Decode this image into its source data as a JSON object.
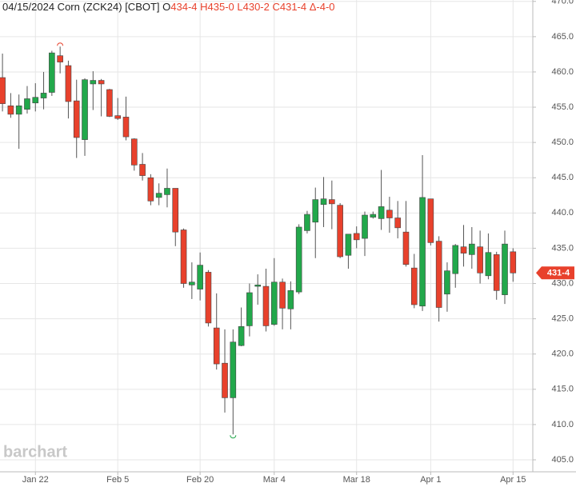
{
  "chart_data": {
    "type": "candlestick",
    "title": "04/15/2024 Corn (ZCK24) [CBOT] O",
    "quote": "434-4 H435-0 L430-2 C431-4 Δ-4-0",
    "watermark": "barchart",
    "last_price": {
      "value": 431.5,
      "label": "431-4"
    },
    "up_color": "#22a84b",
    "down_color": "#e8412c",
    "open": [
      459.2,
      455.2,
      454.0,
      454.7,
      455.6,
      456.3,
      457.1,
      462.3,
      460.9,
      455.9,
      450.4,
      458.3,
      458.8,
      457.5,
      453.8,
      453.6,
      450.5,
      446.9,
      445.0,
      442.2,
      442.6,
      443.5,
      437.6,
      429.8,
      429.2,
      431.6,
      423.7,
      418.7,
      413.8,
      421.2,
      424.0,
      429.6,
      429.6,
      424.2,
      430.2,
      426.4,
      428.8,
      437.5,
      438.7,
      441.2,
      441.9,
      441.1,
      434.0,
      437.1,
      436.4,
      439.4,
      439.2,
      440.4,
      439.3,
      437.3,
      432.2,
      426.8,
      442.0,
      436.0,
      428.5,
      431.4,
      435.2,
      434.1,
      435.2,
      431.1,
      434.1,
      428.4,
      434.5
    ],
    "high": [
      462.6,
      457.0,
      456.8,
      458.0,
      458.4,
      460.0,
      463.0,
      463.6,
      461.6,
      458.9,
      459.1,
      460.1,
      459.0,
      457.6,
      456.3,
      456.5,
      450.6,
      448.5,
      445.5,
      444.2,
      446.3,
      443.5,
      437.8,
      433.0,
      434.4,
      431.9,
      428.6,
      423.5,
      423.5,
      426.6,
      430.0,
      431.3,
      432.1,
      433.6,
      430.7,
      430.3,
      438.4,
      440.3,
      443.6,
      445.1,
      444.6,
      441.4,
      437.0,
      438.1,
      440.2,
      440.2,
      446.1,
      442.3,
      441.7,
      441.7,
      434.2,
      448.2,
      442.0,
      436.7,
      433.0,
      435.6,
      438.3,
      438.0,
      437.5,
      437.1,
      434.5,
      437.5,
      435.0
    ],
    "low": [
      454.4,
      453.5,
      449.1,
      454.1,
      454.4,
      454.7,
      456.6,
      459.8,
      453.4,
      447.8,
      448.1,
      454.6,
      453.7,
      453.6,
      453.2,
      450.3,
      446.0,
      444.6,
      441.1,
      441.1,
      440.8,
      435.3,
      429.4,
      427.8,
      427.6,
      423.9,
      417.8,
      411.7,
      408.6,
      421.1,
      422.5,
      427.0,
      423.2,
      424.0,
      423.5,
      423.5,
      428.5,
      437.1,
      433.6,
      438.0,
      437.7,
      433.6,
      432.1,
      435.0,
      433.9,
      439.2,
      437.6,
      437.2,
      436.4,
      432.4,
      426.5,
      426.1,
      435.4,
      424.6,
      426.0,
      429.4,
      432.4,
      432.1,
      430.0,
      430.6,
      427.7,
      427.1,
      430.25
    ],
    "close": [
      455.5,
      454.0,
      455.2,
      456.2,
      456.4,
      457.0,
      462.7,
      461.4,
      455.8,
      450.7,
      458.9,
      458.8,
      458.3,
      453.7,
      453.4,
      450.8,
      446.8,
      445.3,
      441.7,
      442.8,
      443.5,
      437.3,
      430.0,
      430.2,
      432.6,
      424.4,
      418.6,
      413.8,
      421.7,
      423.9,
      428.7,
      429.8,
      424.0,
      430.2,
      426.5,
      429.0,
      438.0,
      439.8,
      441.9,
      442.0,
      441.3,
      433.8,
      437.0,
      436.2,
      439.7,
      439.8,
      440.9,
      439.3,
      437.9,
      432.7,
      427.0,
      442.2,
      435.8,
      426.6,
      431.8,
      435.4,
      434.3,
      435.6,
      431.5,
      434.4,
      429.0,
      435.6,
      431.5
    ],
    "xlim": [
      -0.3,
      64.4
    ],
    "xticks": [
      {
        "value": 4,
        "label": "Jan 22"
      },
      {
        "value": 14,
        "label": "Feb 5"
      },
      {
        "value": 24,
        "label": "Feb 20"
      },
      {
        "value": 33,
        "label": "Mar 4"
      },
      {
        "value": 43,
        "label": "Mar 18"
      },
      {
        "value": 52,
        "label": "Apr 1"
      },
      {
        "value": 62,
        "label": "Apr 15"
      }
    ],
    "ylim": [
      403.3,
      470.2
    ],
    "yticks": [
      {
        "value": 405,
        "label": "405.0"
      },
      {
        "value": 410,
        "label": "410.0"
      },
      {
        "value": 415,
        "label": "415.0"
      },
      {
        "value": 420,
        "label": "420.0"
      },
      {
        "value": 425,
        "label": "425.0"
      },
      {
        "value": 430,
        "label": "430.0"
      },
      {
        "value": 435,
        "label": "435.0"
      },
      {
        "value": 440,
        "label": "440.0"
      },
      {
        "value": 445,
        "label": "445.0"
      },
      {
        "value": 450,
        "label": "450.0"
      },
      {
        "value": 455,
        "label": "455.0"
      },
      {
        "value": 460,
        "label": "460.0"
      },
      {
        "value": 465,
        "label": "465.0"
      },
      {
        "value": 470,
        "label": "470.0"
      }
    ],
    "grid": true
  }
}
